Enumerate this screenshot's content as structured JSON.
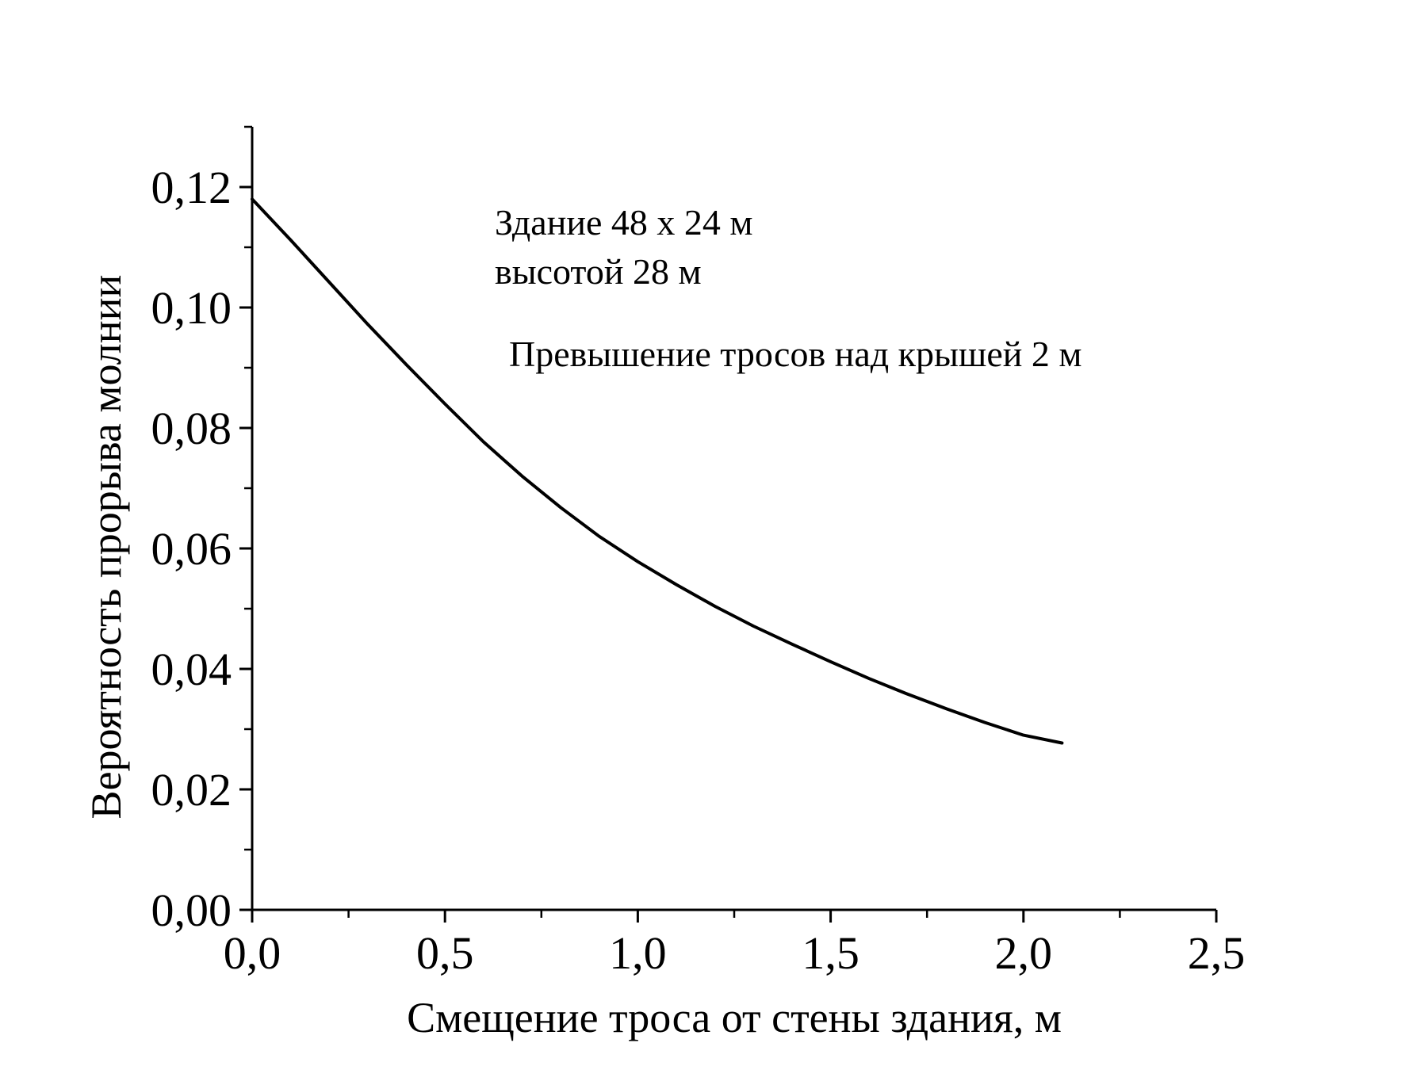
{
  "chart_data": {
    "type": "line",
    "title": "",
    "xlabel": "Смещение троса от стены здания, м",
    "ylabel": "Вероятность прорыва молнии",
    "xlim": [
      0,
      2.5
    ],
    "ylim": [
      0,
      0.13
    ],
    "x_ticks": [
      0,
      0.5,
      1.0,
      1.5,
      2.0,
      2.5
    ],
    "x_tick_labels": [
      "0,0",
      "0,5",
      "1,0",
      "1,5",
      "2,0",
      "2,5"
    ],
    "y_ticks": [
      0,
      0.02,
      0.04,
      0.06,
      0.08,
      0.1,
      0.12
    ],
    "y_tick_labels": [
      "0,00",
      "0,02",
      "0,04",
      "0,06",
      "0,08",
      "0,10",
      "0,12"
    ],
    "grid": false,
    "legend": "none",
    "line_color": "#000000",
    "series": [
      {
        "x": [
          0,
          0.1,
          0.2,
          0.3,
          0.4,
          0.5,
          0.6,
          0.7,
          0.8,
          0.9,
          1.0,
          1.1,
          1.2,
          1.3,
          1.4,
          1.5,
          1.6,
          1.7,
          1.8,
          1.9,
          2.0,
          2.1
        ],
        "values": [
          0.118,
          0.1112,
          0.1042,
          0.0972,
          0.0905,
          0.084,
          0.0777,
          0.072,
          0.0668,
          0.062,
          0.0578,
          0.054,
          0.0504,
          0.0471,
          0.0441,
          0.0412,
          0.0384,
          0.0358,
          0.0334,
          0.0311,
          0.029,
          0.0277
        ]
      }
    ],
    "annotations": [
      "Здание 48 х 24 м",
      "высотой 28 м",
      "Превышение тросов над крышей 2 м"
    ]
  }
}
